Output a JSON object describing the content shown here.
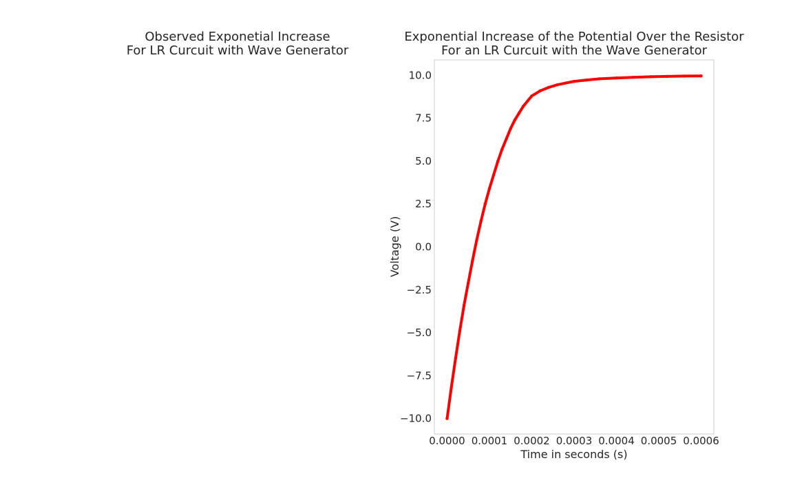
{
  "chart_data": [
    {
      "type": "line",
      "title_lines": [
        "Observed Exponetial Increase",
        "For LR Curcuit with Wave Generator"
      ],
      "series": []
    },
    {
      "type": "line",
      "title_lines": [
        "Exponential Increase of the Potential Over the Resistor",
        "For an LR Curcuit with the Wave Generator"
      ],
      "xlabel": "Time in seconds (s)",
      "ylabel": "Voltage (V)",
      "xlim": [
        -3e-05,
        0.00063
      ],
      "ylim": [
        -10.9,
        10.9
      ],
      "xticks": [
        0.0,
        0.0001,
        0.0002,
        0.0003,
        0.0004,
        0.0005,
        0.0006
      ],
      "xtick_labels": [
        "0.0000",
        "0.0001",
        "0.0002",
        "0.0003",
        "0.0004",
        "0.0005",
        "0.0006"
      ],
      "yticks": [
        -10.0,
        -7.5,
        -5.0,
        -2.5,
        0.0,
        2.5,
        5.0,
        7.5,
        10.0
      ],
      "ytick_labels": [
        "−10.0",
        "−7.5",
        "−5.0",
        "−2.5",
        "0.0",
        "2.5",
        "5.0",
        "7.5",
        "10.0"
      ],
      "grid": false,
      "color": "#ff0000",
      "x": [
        0.0,
        1e-05,
        2e-05,
        3e-05,
        4e-05,
        5e-05,
        6e-05,
        7e-05,
        8e-05,
        9e-05,
        0.0001,
        0.00011,
        0.00012,
        0.00013,
        0.00014,
        0.00015,
        0.00016,
        0.00017,
        0.00018,
        0.00019,
        0.0002,
        0.00022,
        0.00024,
        0.00026,
        0.00028,
        0.0003,
        0.00033,
        0.00036,
        0.0004,
        0.00044,
        0.00048,
        0.00052,
        0.00056,
        0.0006
      ],
      "y": [
        -10.0,
        -8.2,
        -6.5,
        -4.9,
        -3.4,
        -2.1,
        -0.8,
        0.4,
        1.5,
        2.5,
        3.4,
        4.2,
        5.0,
        5.7,
        6.3,
        6.9,
        7.4,
        7.8,
        8.2,
        8.5,
        8.8,
        9.1,
        9.3,
        9.45,
        9.55,
        9.65,
        9.73,
        9.8,
        9.85,
        9.89,
        9.92,
        9.94,
        9.96,
        9.97
      ]
    }
  ]
}
